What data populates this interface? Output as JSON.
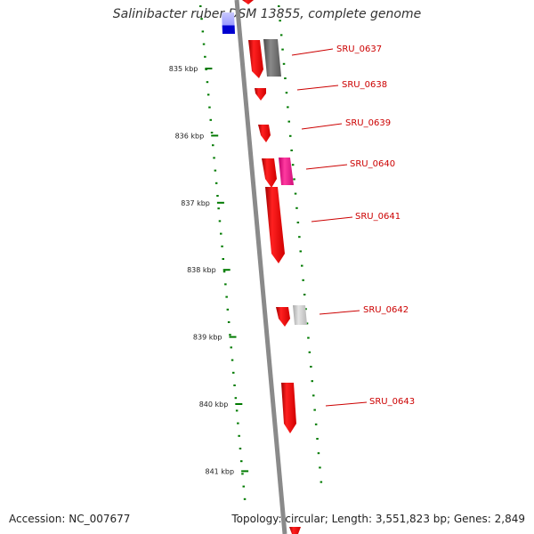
{
  "title": "Salinibacter ruber DSM 13855, complete genome",
  "accession_text": "Accession: NC_007677",
  "summary_text": "Topology: circular; Length: 3,551,823 bp; Genes: 2,849",
  "colors": {
    "backbone": "#8a8a8a",
    "gene_red": "#ff0000",
    "gene_dark_red": "#b30000",
    "gene_magenta": "#ff1493",
    "gene_gray": "#707070",
    "gene_light_gray": "#c8c8c8",
    "gene_blue": "#0000cc",
    "dots": "#007a00",
    "label": "#cc0000"
  },
  "ticks": [
    {
      "kbp": 835,
      "label": "835 kbp"
    },
    {
      "kbp": 836,
      "label": "836 kbp"
    },
    {
      "kbp": 837,
      "label": "837 kbp"
    },
    {
      "kbp": 838,
      "label": "838 kbp"
    },
    {
      "kbp": 839,
      "label": "839 kbp"
    },
    {
      "kbp": 840,
      "label": "840 kbp"
    },
    {
      "kbp": 841,
      "label": "841 kbp"
    }
  ],
  "gene_labels": [
    {
      "name": "SRU_0637"
    },
    {
      "name": "SRU_0638"
    },
    {
      "name": "SRU_0639"
    },
    {
      "name": "SRU_0640"
    },
    {
      "name": "SRU_0641"
    },
    {
      "name": "SRU_0642"
    },
    {
      "name": "SRU_0643"
    }
  ]
}
